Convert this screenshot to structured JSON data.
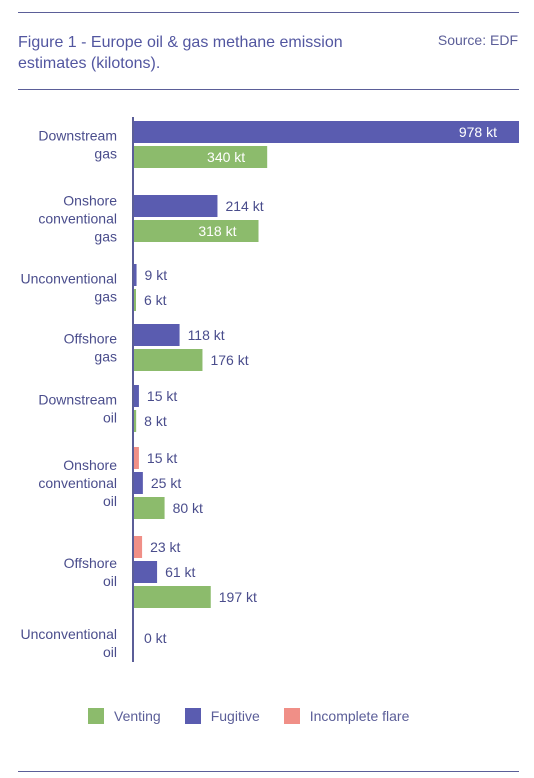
{
  "header": {
    "title": "Figure 1 - Europe oil & gas methane emission estimates (kilotons).",
    "source": "Source: EDF"
  },
  "colors": {
    "venting": "#8cbb6c",
    "fugitive": "#5a5cb0",
    "flare": "#f08f87",
    "text": "#4a4d8c",
    "axis": "#5b5e98"
  },
  "legend": [
    {
      "key": "venting",
      "label": "Venting"
    },
    {
      "key": "fugitive",
      "label": "Fugitive"
    },
    {
      "key": "flare",
      "label": "Incomplete flare"
    }
  ],
  "chart_data": {
    "type": "bar",
    "orientation": "horizontal",
    "unit": "kt",
    "xlim": [
      0,
      978
    ],
    "grid": false,
    "legend_position": "bottom",
    "categories": [
      {
        "label": [
          "Downstream",
          "gas"
        ],
        "bars": [
          {
            "series": "fugitive",
            "value": 978
          },
          {
            "series": "venting",
            "value": 340
          }
        ]
      },
      {
        "label": [
          "Onshore",
          "conventional",
          "gas"
        ],
        "bars": [
          {
            "series": "fugitive",
            "value": 214
          },
          {
            "series": "venting",
            "value": 318
          }
        ]
      },
      {
        "label": [
          "Unconventional",
          "gas"
        ],
        "bars": [
          {
            "series": "fugitive",
            "value": 9
          },
          {
            "series": "venting",
            "value": 6
          }
        ]
      },
      {
        "label": [
          "Offshore",
          "gas"
        ],
        "bars": [
          {
            "series": "fugitive",
            "value": 118
          },
          {
            "series": "venting",
            "value": 176
          }
        ]
      },
      {
        "label": [
          "Downstream",
          "oil"
        ],
        "bars": [
          {
            "series": "fugitive",
            "value": 15
          },
          {
            "series": "venting",
            "value": 8
          }
        ]
      },
      {
        "label": [
          "Onshore",
          "conventional",
          "oil"
        ],
        "bars": [
          {
            "series": "flare",
            "value": 15
          },
          {
            "series": "fugitive",
            "value": 25
          },
          {
            "series": "venting",
            "value": 80
          }
        ]
      },
      {
        "label": [
          "Offshore",
          "oil"
        ],
        "bars": [
          {
            "series": "flare",
            "value": 23
          },
          {
            "series": "fugitive",
            "value": 61
          },
          {
            "series": "venting",
            "value": 197
          }
        ]
      },
      {
        "label": [
          "Unconventional",
          "oil"
        ],
        "bars": [
          {
            "series": "none",
            "value": 0
          }
        ]
      }
    ]
  }
}
